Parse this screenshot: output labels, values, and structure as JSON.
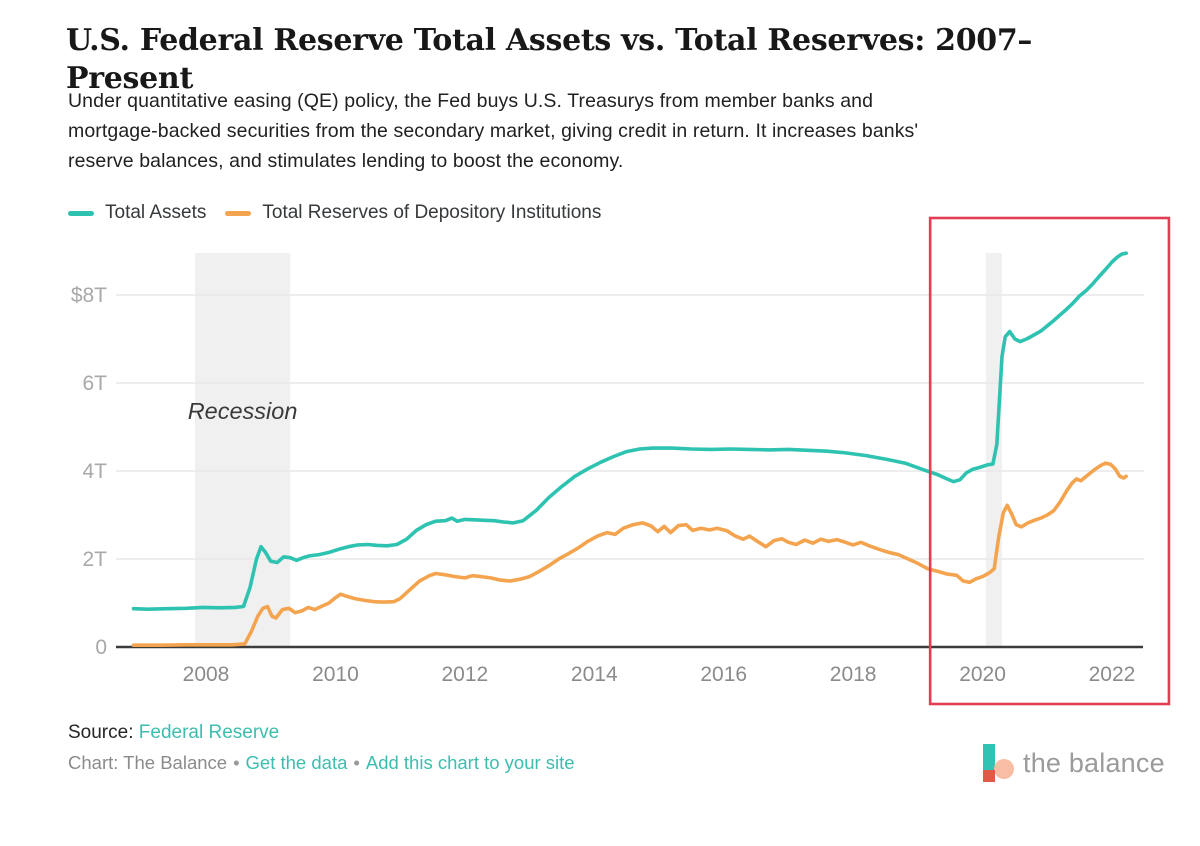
{
  "page": {
    "title": "U.S. Federal Reserve Total Assets vs. Total Reserves: 2007–Present",
    "description_lines": [
      "Under quantitative easing (QE) policy, the Fed buys U.S. Treasurys from member banks and",
      "mortgage-backed securities from the secondary market, giving credit in return. It increases banks'",
      "reserve balances, and stimulates lending to boost the economy."
    ]
  },
  "legend": {
    "items": [
      {
        "label": "Total Assets",
        "color": "#2ec3b1"
      },
      {
        "label": "Total Reserves of Depository Institutions",
        "color": "#f4a44e"
      }
    ]
  },
  "chart_data": {
    "type": "line",
    "title": "U.S. Federal Reserve Total Assets vs. Total Reserves: 2007–Present",
    "xlabel": "",
    "ylabel": "",
    "unit": "trillions of U.S. dollars",
    "xlim": [
      2006.88,
      2022.5
    ],
    "ylim": [
      0,
      9.2
    ],
    "grid": "horizontal",
    "legend_position": "top",
    "y_ticks": [
      {
        "label": "$8T",
        "value": 8
      },
      {
        "label": "6T",
        "value": 6
      },
      {
        "label": "4T",
        "value": 4
      },
      {
        "label": "2T",
        "value": 2
      },
      {
        "label": "0",
        "value": 0
      }
    ],
    "x_ticks": [
      {
        "label": "2008",
        "value": 2008
      },
      {
        "label": "2010",
        "value": 2010
      },
      {
        "label": "2012",
        "value": 2012
      },
      {
        "label": "2014",
        "value": 2014
      },
      {
        "label": "2016",
        "value": 2016
      },
      {
        "label": "2018",
        "value": 2018
      },
      {
        "label": "2020",
        "value": 2020
      },
      {
        "label": "2022",
        "value": 2022
      }
    ],
    "recession_bands": [
      {
        "x0": 2007.83,
        "x1": 2009.3,
        "label": "Recession"
      },
      {
        "x0": 2020.05,
        "x1": 2020.3,
        "label": ""
      }
    ],
    "highlight_box": {
      "x0": 2019.19,
      "x1": 2022.88,
      "color": "#e23d52"
    },
    "series": [
      {
        "name": "Total Assets",
        "color": "#2ec3b1",
        "points": [
          [
            2006.88,
            0.87
          ],
          [
            2007.1,
            0.86
          ],
          [
            2007.4,
            0.87
          ],
          [
            2007.7,
            0.88
          ],
          [
            2007.95,
            0.9
          ],
          [
            2008.2,
            0.89
          ],
          [
            2008.45,
            0.9
          ],
          [
            2008.58,
            0.92
          ],
          [
            2008.68,
            1.35
          ],
          [
            2008.78,
            2.0
          ],
          [
            2008.85,
            2.28
          ],
          [
            2008.92,
            2.15
          ],
          [
            2009.0,
            1.95
          ],
          [
            2009.1,
            1.92
          ],
          [
            2009.2,
            2.05
          ],
          [
            2009.3,
            2.03
          ],
          [
            2009.4,
            1.97
          ],
          [
            2009.5,
            2.03
          ],
          [
            2009.6,
            2.07
          ],
          [
            2009.75,
            2.1
          ],
          [
            2009.9,
            2.15
          ],
          [
            2010.05,
            2.22
          ],
          [
            2010.2,
            2.28
          ],
          [
            2010.35,
            2.32
          ],
          [
            2010.5,
            2.33
          ],
          [
            2010.65,
            2.31
          ],
          [
            2010.8,
            2.3
          ],
          [
            2010.95,
            2.33
          ],
          [
            2011.1,
            2.45
          ],
          [
            2011.25,
            2.65
          ],
          [
            2011.4,
            2.78
          ],
          [
            2011.55,
            2.86
          ],
          [
            2011.7,
            2.87
          ],
          [
            2011.8,
            2.93
          ],
          [
            2011.88,
            2.86
          ],
          [
            2012.0,
            2.9
          ],
          [
            2012.15,
            2.89
          ],
          [
            2012.3,
            2.88
          ],
          [
            2012.45,
            2.87
          ],
          [
            2012.6,
            2.84
          ],
          [
            2012.75,
            2.82
          ],
          [
            2012.9,
            2.87
          ],
          [
            2013.1,
            3.1
          ],
          [
            2013.3,
            3.4
          ],
          [
            2013.5,
            3.65
          ],
          [
            2013.7,
            3.88
          ],
          [
            2013.9,
            4.05
          ],
          [
            2014.1,
            4.2
          ],
          [
            2014.3,
            4.33
          ],
          [
            2014.5,
            4.44
          ],
          [
            2014.7,
            4.5
          ],
          [
            2014.9,
            4.52
          ],
          [
            2015.2,
            4.52
          ],
          [
            2015.5,
            4.5
          ],
          [
            2015.8,
            4.49
          ],
          [
            2016.1,
            4.5
          ],
          [
            2016.4,
            4.49
          ],
          [
            2016.7,
            4.48
          ],
          [
            2017.0,
            4.49
          ],
          [
            2017.3,
            4.47
          ],
          [
            2017.6,
            4.45
          ],
          [
            2017.9,
            4.41
          ],
          [
            2018.2,
            4.35
          ],
          [
            2018.5,
            4.27
          ],
          [
            2018.8,
            4.18
          ],
          [
            2019.1,
            4.02
          ],
          [
            2019.3,
            3.92
          ],
          [
            2019.45,
            3.82
          ],
          [
            2019.55,
            3.76
          ],
          [
            2019.65,
            3.8
          ],
          [
            2019.75,
            3.96
          ],
          [
            2019.85,
            4.04
          ],
          [
            2019.95,
            4.08
          ],
          [
            2020.08,
            4.14
          ],
          [
            2020.16,
            4.16
          ],
          [
            2020.22,
            4.6
          ],
          [
            2020.26,
            5.6
          ],
          [
            2020.3,
            6.6
          ],
          [
            2020.35,
            7.05
          ],
          [
            2020.42,
            7.17
          ],
          [
            2020.5,
            7.0
          ],
          [
            2020.58,
            6.94
          ],
          [
            2020.68,
            7.0
          ],
          [
            2020.78,
            7.08
          ],
          [
            2020.9,
            7.18
          ],
          [
            2021.0,
            7.3
          ],
          [
            2021.1,
            7.42
          ],
          [
            2021.2,
            7.55
          ],
          [
            2021.3,
            7.68
          ],
          [
            2021.4,
            7.82
          ],
          [
            2021.5,
            7.98
          ],
          [
            2021.6,
            8.1
          ],
          [
            2021.7,
            8.25
          ],
          [
            2021.8,
            8.42
          ],
          [
            2021.9,
            8.58
          ],
          [
            2022.0,
            8.75
          ],
          [
            2022.08,
            8.86
          ],
          [
            2022.15,
            8.93
          ],
          [
            2022.22,
            8.95
          ]
        ]
      },
      {
        "name": "Total Reserves of Depository Institutions",
        "color": "#f4a44e",
        "points": [
          [
            2006.88,
            0.04
          ],
          [
            2007.3,
            0.04
          ],
          [
            2007.7,
            0.05
          ],
          [
            2008.1,
            0.05
          ],
          [
            2008.4,
            0.05
          ],
          [
            2008.6,
            0.07
          ],
          [
            2008.7,
            0.35
          ],
          [
            2008.8,
            0.7
          ],
          [
            2008.88,
            0.88
          ],
          [
            2008.95,
            0.92
          ],
          [
            2009.02,
            0.7
          ],
          [
            2009.08,
            0.66
          ],
          [
            2009.18,
            0.85
          ],
          [
            2009.28,
            0.88
          ],
          [
            2009.38,
            0.78
          ],
          [
            2009.48,
            0.82
          ],
          [
            2009.58,
            0.9
          ],
          [
            2009.68,
            0.85
          ],
          [
            2009.78,
            0.92
          ],
          [
            2009.9,
            1.0
          ],
          [
            2010.0,
            1.12
          ],
          [
            2010.08,
            1.2
          ],
          [
            2010.18,
            1.15
          ],
          [
            2010.3,
            1.1
          ],
          [
            2010.45,
            1.06
          ],
          [
            2010.6,
            1.03
          ],
          [
            2010.75,
            1.02
          ],
          [
            2010.9,
            1.03
          ],
          [
            2011.0,
            1.1
          ],
          [
            2011.15,
            1.3
          ],
          [
            2011.3,
            1.5
          ],
          [
            2011.45,
            1.62
          ],
          [
            2011.55,
            1.67
          ],
          [
            2011.7,
            1.64
          ],
          [
            2011.85,
            1.6
          ],
          [
            2012.0,
            1.57
          ],
          [
            2012.12,
            1.62
          ],
          [
            2012.25,
            1.6
          ],
          [
            2012.4,
            1.57
          ],
          [
            2012.55,
            1.52
          ],
          [
            2012.7,
            1.5
          ],
          [
            2012.85,
            1.54
          ],
          [
            2013.0,
            1.6
          ],
          [
            2013.15,
            1.72
          ],
          [
            2013.3,
            1.85
          ],
          [
            2013.45,
            2.0
          ],
          [
            2013.6,
            2.12
          ],
          [
            2013.75,
            2.25
          ],
          [
            2013.9,
            2.4
          ],
          [
            2014.05,
            2.52
          ],
          [
            2014.2,
            2.6
          ],
          [
            2014.32,
            2.56
          ],
          [
            2014.45,
            2.7
          ],
          [
            2014.6,
            2.78
          ],
          [
            2014.75,
            2.82
          ],
          [
            2014.88,
            2.75
          ],
          [
            2014.98,
            2.62
          ],
          [
            2015.08,
            2.74
          ],
          [
            2015.18,
            2.6
          ],
          [
            2015.3,
            2.76
          ],
          [
            2015.42,
            2.78
          ],
          [
            2015.52,
            2.65
          ],
          [
            2015.65,
            2.7
          ],
          [
            2015.78,
            2.66
          ],
          [
            2015.9,
            2.7
          ],
          [
            2016.05,
            2.64
          ],
          [
            2016.18,
            2.52
          ],
          [
            2016.3,
            2.45
          ],
          [
            2016.4,
            2.52
          ],
          [
            2016.52,
            2.4
          ],
          [
            2016.65,
            2.28
          ],
          [
            2016.78,
            2.42
          ],
          [
            2016.9,
            2.46
          ],
          [
            2017.0,
            2.38
          ],
          [
            2017.12,
            2.33
          ],
          [
            2017.25,
            2.43
          ],
          [
            2017.38,
            2.36
          ],
          [
            2017.5,
            2.45
          ],
          [
            2017.62,
            2.4
          ],
          [
            2017.75,
            2.44
          ],
          [
            2017.88,
            2.38
          ],
          [
            2018.0,
            2.32
          ],
          [
            2018.12,
            2.38
          ],
          [
            2018.25,
            2.3
          ],
          [
            2018.4,
            2.22
          ],
          [
            2018.55,
            2.15
          ],
          [
            2018.7,
            2.1
          ],
          [
            2018.85,
            2.0
          ],
          [
            2019.0,
            1.9
          ],
          [
            2019.15,
            1.78
          ],
          [
            2019.3,
            1.72
          ],
          [
            2019.45,
            1.66
          ],
          [
            2019.6,
            1.63
          ],
          [
            2019.7,
            1.5
          ],
          [
            2019.8,
            1.47
          ],
          [
            2019.9,
            1.55
          ],
          [
            2020.0,
            1.6
          ],
          [
            2020.1,
            1.68
          ],
          [
            2020.18,
            1.78
          ],
          [
            2020.25,
            2.5
          ],
          [
            2020.32,
            3.05
          ],
          [
            2020.38,
            3.22
          ],
          [
            2020.45,
            3.02
          ],
          [
            2020.52,
            2.78
          ],
          [
            2020.6,
            2.73
          ],
          [
            2020.7,
            2.82
          ],
          [
            2020.8,
            2.88
          ],
          [
            2020.9,
            2.93
          ],
          [
            2021.0,
            3.0
          ],
          [
            2021.1,
            3.1
          ],
          [
            2021.2,
            3.3
          ],
          [
            2021.3,
            3.55
          ],
          [
            2021.38,
            3.72
          ],
          [
            2021.45,
            3.82
          ],
          [
            2021.52,
            3.78
          ],
          [
            2021.62,
            3.9
          ],
          [
            2021.72,
            4.02
          ],
          [
            2021.82,
            4.12
          ],
          [
            2021.9,
            4.18
          ],
          [
            2021.98,
            4.15
          ],
          [
            2022.05,
            4.05
          ],
          [
            2022.12,
            3.88
          ],
          [
            2022.18,
            3.84
          ],
          [
            2022.22,
            3.88
          ]
        ]
      }
    ]
  },
  "footer": {
    "source_label": "Source:",
    "source_link": "Federal Reserve",
    "chart_credit": "Chart: The Balance",
    "bullet": "•",
    "link_get_data": "Get the data",
    "link_add_chart": "Add this chart to your site"
  },
  "logo": {
    "text": "the balance",
    "mark_teal": "#2fc3b4",
    "mark_peach": "#f9bda4",
    "mark_red": "#e05a47"
  }
}
